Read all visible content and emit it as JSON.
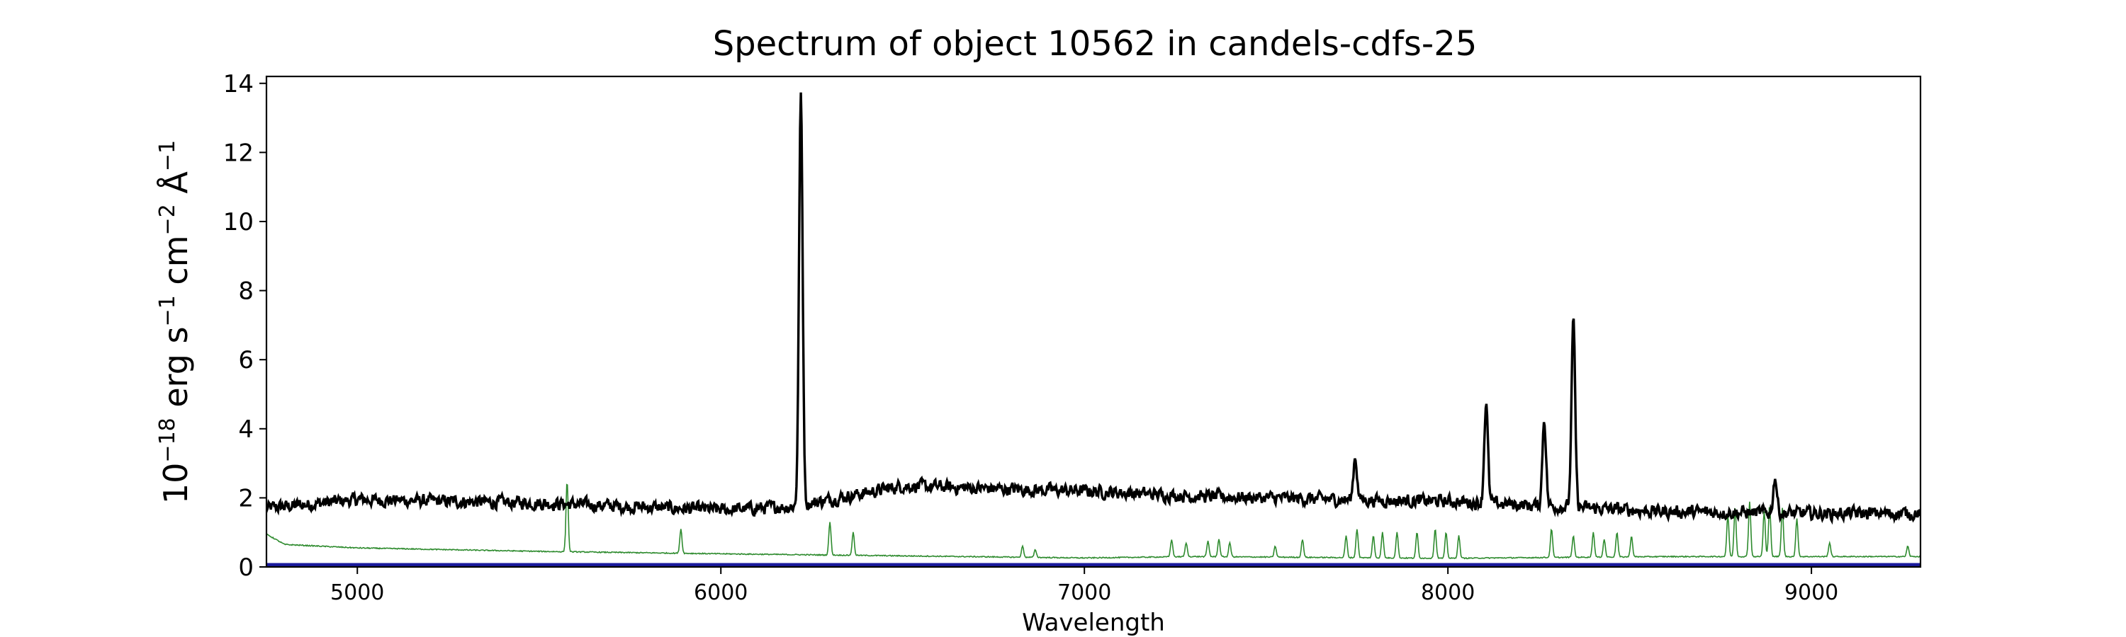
{
  "chart_data": {
    "type": "line",
    "title": "Spectrum of object 10562 in candels-cdfs-25",
    "xlabel": "Wavelength",
    "ylabel_base": "10",
    "ylabel_exp": "−18",
    "ylabel_rest": " erg s",
    "ylabel_s_exp": "−1",
    "ylabel_cm": " cm",
    "ylabel_cm_exp": "−2",
    "ylabel_ang": " Å",
    "ylabel_ang_exp": "−1",
    "xlim": [
      4750,
      9300
    ],
    "ylim": [
      0,
      14.2
    ],
    "xticks": [
      5000,
      6000,
      7000,
      8000,
      9000
    ],
    "yticks": [
      0,
      2,
      4,
      6,
      8,
      10,
      12,
      14
    ],
    "grid": false,
    "series": [
      {
        "role": "flux",
        "color": "#000000",
        "continuum": [
          [
            4750,
            1.7
          ],
          [
            5000,
            1.95
          ],
          [
            5500,
            1.85
          ],
          [
            6000,
            1.65
          ],
          [
            6200,
            1.75
          ],
          [
            6500,
            2.35
          ],
          [
            6800,
            2.25
          ],
          [
            7000,
            2.2
          ],
          [
            7300,
            2.05
          ],
          [
            7700,
            1.95
          ],
          [
            8000,
            1.9
          ],
          [
            8300,
            1.75
          ],
          [
            8600,
            1.6
          ],
          [
            9000,
            1.55
          ],
          [
            9300,
            1.55
          ]
        ],
        "noise": 0.28,
        "lines": [
          {
            "x": 6220,
            "height": 13.6
          },
          {
            "x": 7745,
            "height": 3.2
          },
          {
            "x": 8105,
            "height": 4.75
          },
          {
            "x": 8265,
            "height": 4.3
          },
          {
            "x": 8345,
            "height": 7.1
          },
          {
            "x": 8900,
            "height": 2.6
          }
        ]
      },
      {
        "role": "sky",
        "color": "#2e8b2e",
        "continuum": [
          [
            4750,
            0.95
          ],
          [
            4800,
            0.65
          ],
          [
            5000,
            0.55
          ],
          [
            5500,
            0.45
          ],
          [
            6000,
            0.38
          ],
          [
            6500,
            0.32
          ],
          [
            7000,
            0.26
          ],
          [
            7300,
            0.3
          ],
          [
            8000,
            0.25
          ],
          [
            8600,
            0.3
          ],
          [
            9300,
            0.3
          ]
        ],
        "lines": [
          {
            "x": 5577,
            "height": 2.5
          },
          {
            "x": 5890,
            "height": 1.1
          },
          {
            "x": 6300,
            "height": 1.3
          },
          {
            "x": 6364,
            "height": 1.0
          },
          {
            "x": 6830,
            "height": 0.6
          },
          {
            "x": 6865,
            "height": 0.5
          },
          {
            "x": 7240,
            "height": 0.8
          },
          {
            "x": 7280,
            "height": 0.7
          },
          {
            "x": 7340,
            "height": 0.75
          },
          {
            "x": 7370,
            "height": 0.8
          },
          {
            "x": 7400,
            "height": 0.7
          },
          {
            "x": 7525,
            "height": 0.6
          },
          {
            "x": 7600,
            "height": 0.8
          },
          {
            "x": 7720,
            "height": 0.9
          },
          {
            "x": 7750,
            "height": 1.1
          },
          {
            "x": 7795,
            "height": 0.9
          },
          {
            "x": 7820,
            "height": 1.0
          },
          {
            "x": 7860,
            "height": 1.0
          },
          {
            "x": 7915,
            "height": 1.0
          },
          {
            "x": 7965,
            "height": 1.1
          },
          {
            "x": 7995,
            "height": 1.0
          },
          {
            "x": 8030,
            "height": 0.9
          },
          {
            "x": 8285,
            "height": 1.1
          },
          {
            "x": 8345,
            "height": 0.9
          },
          {
            "x": 8400,
            "height": 1.0
          },
          {
            "x": 8430,
            "height": 0.8
          },
          {
            "x": 8465,
            "height": 1.0
          },
          {
            "x": 8505,
            "height": 0.9
          },
          {
            "x": 8770,
            "height": 1.5
          },
          {
            "x": 8790,
            "height": 1.7
          },
          {
            "x": 8830,
            "height": 1.9
          },
          {
            "x": 8870,
            "height": 1.6
          },
          {
            "x": 8885,
            "height": 1.8
          },
          {
            "x": 8920,
            "height": 1.7
          },
          {
            "x": 8960,
            "height": 1.4
          },
          {
            "x": 9050,
            "height": 0.7
          },
          {
            "x": 9265,
            "height": 0.6
          }
        ]
      },
      {
        "role": "error",
        "color": "#1a1a9c",
        "value": 0.05
      }
    ]
  }
}
